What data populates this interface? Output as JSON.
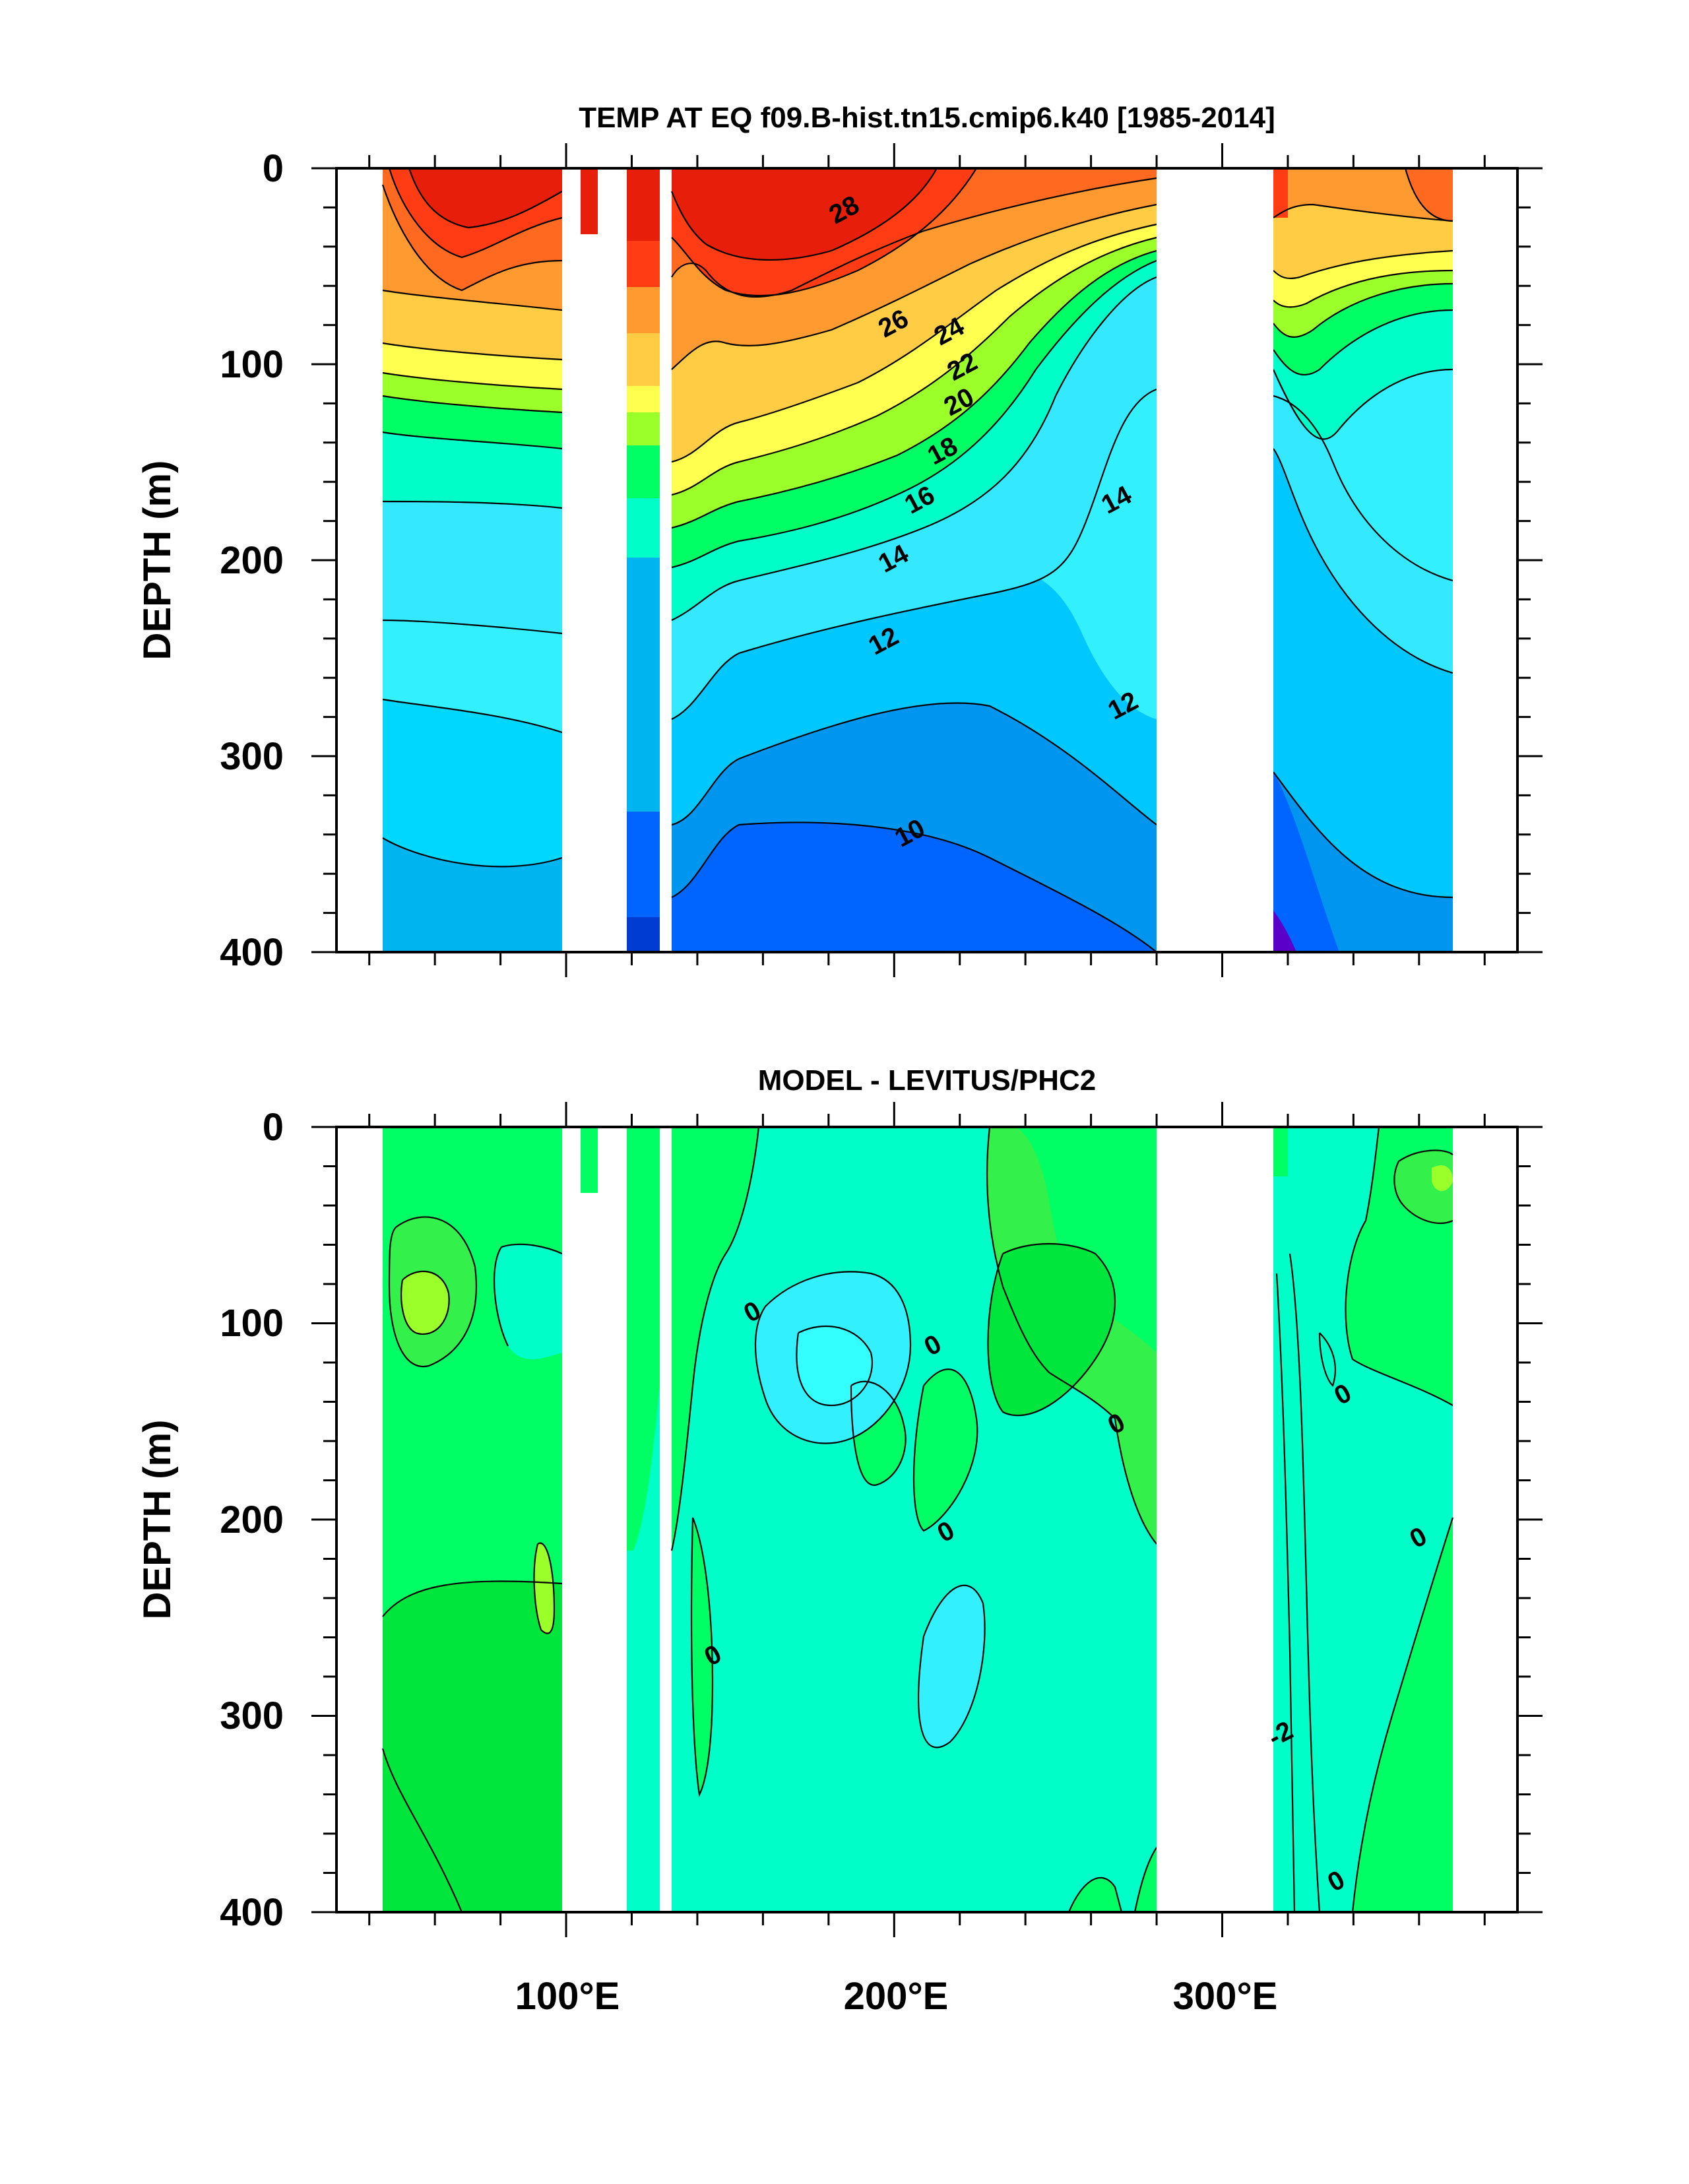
{
  "chart_data": [
    {
      "type": "heatmap",
      "title": "TEMP AT EQ f09.B-hist.tn15.cmip6.k40 [1985-2014]",
      "ylabel": "DEPTH (m)",
      "xlabel": "",
      "ylim": [
        400,
        0
      ],
      "xlim": [
        30,
        390
      ],
      "y_ticks": [
        "0",
        "100",
        "200",
        "300",
        "400"
      ],
      "x_ticks": [
        "100°E",
        "200°E",
        "300°E"
      ],
      "x_tick_values": [
        100,
        200,
        300
      ],
      "contour_labels": [
        {
          "text": "28",
          "lon": 185,
          "depth": 22
        },
        {
          "text": "26",
          "lon": 200,
          "depth": 80
        },
        {
          "text": "24",
          "lon": 217,
          "depth": 84
        },
        {
          "text": "22",
          "lon": 221,
          "depth": 102
        },
        {
          "text": "20",
          "lon": 220,
          "depth": 120
        },
        {
          "text": "18",
          "lon": 215,
          "depth": 145
        },
        {
          "text": "16",
          "lon": 208,
          "depth": 170
        },
        {
          "text": "14",
          "lon": 200,
          "depth": 200
        },
        {
          "text": "12",
          "lon": 197,
          "depth": 242
        },
        {
          "text": "10",
          "lon": 205,
          "depth": 340
        },
        {
          "text": "14",
          "lon": 268,
          "depth": 170
        },
        {
          "text": "12",
          "lon": 270,
          "depth": 275
        }
      ]
    },
    {
      "type": "heatmap",
      "title": "MODEL - LEVITUS/PHC2",
      "ylabel": "DEPTH (m)",
      "xlabel": "",
      "ylim": [
        400,
        0
      ],
      "xlim": [
        30,
        390
      ],
      "y_ticks": [
        "0",
        "100",
        "200",
        "300",
        "400"
      ],
      "x_ticks": [
        "100°E",
        "200°E",
        "300°E"
      ],
      "x_tick_values": [
        100,
        200,
        300
      ],
      "contour_labels": [
        {
          "text": "0",
          "lon": 157,
          "depth": 95
        },
        {
          "text": "0",
          "lon": 212,
          "depth": 112
        },
        {
          "text": "0",
          "lon": 268,
          "depth": 152
        },
        {
          "text": "0",
          "lon": 216,
          "depth": 207
        },
        {
          "text": "0",
          "lon": 145,
          "depth": 270
        },
        {
          "text": "0",
          "lon": 337,
          "depth": 137
        },
        {
          "text": "0",
          "lon": 360,
          "depth": 210
        },
        {
          "text": "-2",
          "lon": 318,
          "depth": 310
        },
        {
          "text": "0",
          "lon": 335,
          "depth": 385
        }
      ]
    }
  ]
}
